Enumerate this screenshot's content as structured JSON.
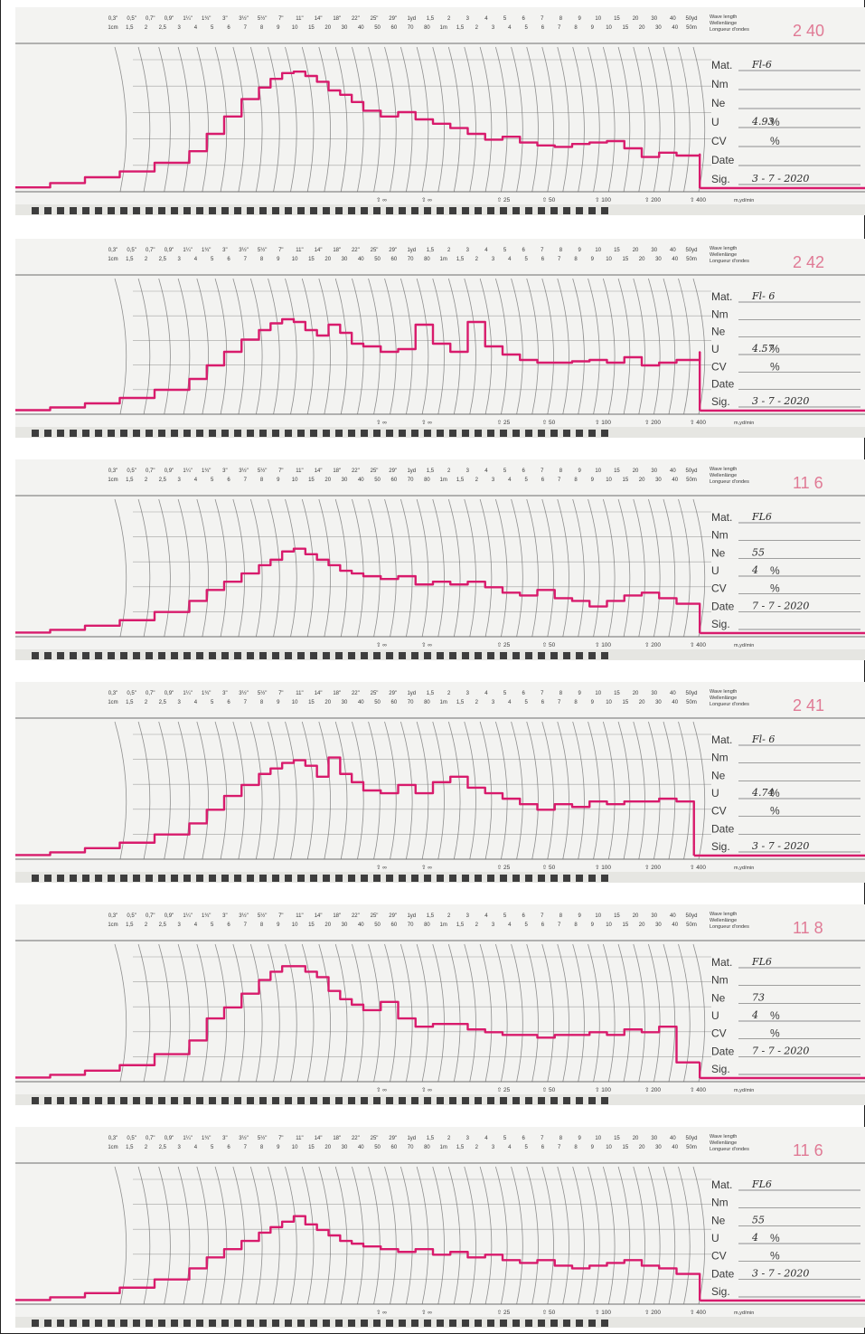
{
  "colors": {
    "paper": "#f3f3f1",
    "paper_shadow": "#e6e6e2",
    "grid": "#6d6d6d",
    "trace": "#d81b6c",
    "stamp_number": "#e07a95",
    "ink": "#3a3a3a",
    "handwriting": "#2a2a2a",
    "bar": "#3d3d3d"
  },
  "scale": {
    "top_row": [
      "0,3\"",
      "0,5\"",
      "0,7\"",
      "0,9\"",
      "1¼\"",
      "1¾\"",
      "3\"",
      "3½\"",
      "5½\"",
      "7\"",
      "11\"",
      "14\"",
      "18\"",
      "22\"",
      "25\"",
      "29\"",
      "1yd",
      "1,5",
      "2",
      "3",
      "4",
      "5",
      "6",
      "7",
      "8",
      "9",
      "10",
      "15",
      "20",
      "30",
      "40",
      "50yd"
    ],
    "bottom_row": [
      "1cm",
      "1,5",
      "2",
      "2,5",
      "3",
      "4",
      "5",
      "6",
      "7",
      "8",
      "9",
      "10",
      "15",
      "20",
      "30",
      "40",
      "50",
      "60",
      "70",
      "80",
      "1m",
      "1,5",
      "2",
      "3",
      "4",
      "5",
      "6",
      "7",
      "8",
      "9",
      "10",
      "15",
      "20",
      "30",
      "40",
      "50m"
    ],
    "header": [
      "Wave length",
      "Wellenlänge",
      "Longueur d'ondes"
    ],
    "speed_marks": [
      "∞",
      "∞",
      "25",
      "50",
      "100",
      "200",
      "400"
    ],
    "speed_unit": "m,yd/min"
  },
  "chart_data": [
    {
      "type": "line",
      "stamp": "2   40",
      "fields": [
        {
          "label": "Mat.",
          "value": "Fl-6"
        },
        {
          "label": "Nm",
          "value": ""
        },
        {
          "label": "Ne",
          "value": ""
        },
        {
          "label": "U",
          "value": "4.93",
          "unit": "%"
        },
        {
          "label": "CV",
          "value": "",
          "unit": "%"
        },
        {
          "label": "Date",
          "value": ""
        },
        {
          "label": "Sig.",
          "value": "3 - 7 - 2020"
        }
      ],
      "x": [
        0,
        30,
        60,
        90,
        120,
        150,
        165,
        180,
        195,
        210,
        220,
        230,
        240,
        250,
        260,
        270,
        280,
        290,
        300,
        315,
        330,
        345,
        360,
        375,
        390,
        405,
        420,
        435,
        450,
        465,
        480,
        495,
        510,
        525,
        540,
        555,
        570,
        590
      ],
      "y": [
        3,
        6,
        10,
        14,
        20,
        28,
        40,
        52,
        64,
        72,
        78,
        82,
        83,
        80,
        76,
        70,
        67,
        62,
        56,
        52,
        55,
        50,
        47,
        44,
        40,
        36,
        38,
        34,
        32,
        31,
        33,
        34,
        35,
        30,
        24,
        27,
        25,
        26
      ]
    },
    {
      "type": "line",
      "stamp": "2   42",
      "fields": [
        {
          "label": "Mat.",
          "value": "Fl- 6"
        },
        {
          "label": "Nm",
          "value": ""
        },
        {
          "label": "Ne",
          "value": ""
        },
        {
          "label": "U",
          "value": "4.57",
          "unit": "%"
        },
        {
          "label": "CV",
          "value": "",
          "unit": "%"
        },
        {
          "label": "Date",
          "value": ""
        },
        {
          "label": "Sig.",
          "value": "3 - 7 - 2020"
        }
      ],
      "x": [
        0,
        30,
        60,
        90,
        120,
        150,
        165,
        180,
        195,
        210,
        220,
        230,
        240,
        250,
        260,
        270,
        280,
        290,
        300,
        315,
        330,
        345,
        360,
        375,
        390,
        405,
        420,
        435,
        450,
        465,
        480,
        495,
        510,
        525,
        540,
        555,
        570,
        590
      ],
      "y": [
        3,
        5,
        8,
        12,
        18,
        26,
        36,
        46,
        55,
        62,
        67,
        70,
        68,
        62,
        58,
        66,
        60,
        52,
        50,
        46,
        48,
        66,
        52,
        46,
        68,
        50,
        44,
        40,
        38,
        38,
        39,
        40,
        38,
        42,
        36,
        38,
        40,
        46
      ]
    },
    {
      "type": "line",
      "stamp": "11   6",
      "fields": [
        {
          "label": "Mat.",
          "value": "FL6"
        },
        {
          "label": "Nm",
          "value": ""
        },
        {
          "label": "Ne",
          "value": "55"
        },
        {
          "label": "U",
          "value": "4",
          "unit": "%"
        },
        {
          "label": "CV",
          "value": "",
          "unit": "%"
        },
        {
          "label": "Date",
          "value": "7 - 7 - 2020"
        },
        {
          "label": "Sig.",
          "value": ""
        }
      ],
      "x": [
        0,
        30,
        60,
        90,
        120,
        150,
        165,
        180,
        195,
        210,
        220,
        230,
        240,
        250,
        260,
        270,
        280,
        290,
        300,
        315,
        330,
        345,
        360,
        375,
        390,
        405,
        420,
        435,
        450,
        465,
        480,
        495,
        510,
        525,
        540,
        555,
        570,
        590
      ],
      "y": [
        3,
        5,
        8,
        12,
        18,
        26,
        34,
        40,
        46,
        52,
        56,
        62,
        64,
        60,
        56,
        52,
        48,
        46,
        44,
        42,
        44,
        38,
        40,
        38,
        40,
        36,
        32,
        30,
        34,
        28,
        26,
        22,
        26,
        30,
        32,
        28,
        24,
        16
      ]
    },
    {
      "type": "line",
      "stamp": "2   41",
      "fields": [
        {
          "label": "Mat.",
          "value": "Fl- 6"
        },
        {
          "label": "Nm",
          "value": ""
        },
        {
          "label": "Ne",
          "value": ""
        },
        {
          "label": "U",
          "value": "4.74",
          "unit": "%"
        },
        {
          "label": "CV",
          "value": "",
          "unit": "%"
        },
        {
          "label": "Date",
          "value": ""
        },
        {
          "label": "Sig.",
          "value": "3 - 7 - 2020"
        }
      ],
      "x": [
        0,
        30,
        60,
        90,
        120,
        150,
        165,
        180,
        195,
        210,
        220,
        230,
        240,
        250,
        260,
        270,
        280,
        290,
        300,
        315,
        330,
        345,
        360,
        375,
        390,
        405,
        420,
        435,
        450,
        465,
        480,
        495,
        510,
        525,
        540,
        555,
        570,
        585
      ],
      "y": [
        3,
        5,
        8,
        12,
        18,
        26,
        36,
        46,
        54,
        62,
        66,
        70,
        72,
        68,
        60,
        74,
        62,
        56,
        50,
        48,
        54,
        48,
        56,
        60,
        52,
        48,
        44,
        40,
        36,
        40,
        38,
        42,
        40,
        42,
        42,
        44,
        42,
        10
      ]
    },
    {
      "type": "line",
      "stamp": "11   8",
      "fields": [
        {
          "label": "Mat.",
          "value": "FL6"
        },
        {
          "label": "Nm",
          "value": ""
        },
        {
          "label": "Ne",
          "value": "73"
        },
        {
          "label": "U",
          "value": "4",
          "unit": "%"
        },
        {
          "label": "CV",
          "value": "",
          "unit": "%"
        },
        {
          "label": "Date",
          "value": "7 - 7 - 2020"
        },
        {
          "label": "Sig.",
          "value": ""
        }
      ],
      "x": [
        0,
        30,
        60,
        90,
        120,
        150,
        165,
        180,
        195,
        210,
        220,
        230,
        240,
        250,
        260,
        270,
        280,
        290,
        300,
        315,
        330,
        345,
        360,
        375,
        390,
        405,
        420,
        435,
        450,
        465,
        480,
        495,
        510,
        525,
        540,
        555,
        570,
        590
      ],
      "y": [
        3,
        5,
        8,
        12,
        20,
        30,
        46,
        54,
        64,
        74,
        80,
        84,
        84,
        80,
        76,
        66,
        60,
        56,
        52,
        58,
        46,
        40,
        42,
        42,
        38,
        36,
        34,
        34,
        32,
        34,
        34,
        36,
        34,
        38,
        36,
        40,
        14,
        14
      ]
    },
    {
      "type": "line",
      "stamp": "11   6",
      "fields": [
        {
          "label": "Mat.",
          "value": "FL6"
        },
        {
          "label": "Nm",
          "value": ""
        },
        {
          "label": "Ne",
          "value": "55"
        },
        {
          "label": "U",
          "value": "4",
          "unit": "%"
        },
        {
          "label": "CV",
          "value": "",
          "unit": "%"
        },
        {
          "label": "Date",
          "value": "3 - 7 - 2020"
        },
        {
          "label": "Sig.",
          "value": ""
        }
      ],
      "x": [
        0,
        30,
        60,
        90,
        120,
        150,
        165,
        180,
        195,
        210,
        220,
        230,
        240,
        250,
        260,
        270,
        280,
        290,
        300,
        315,
        330,
        345,
        360,
        375,
        390,
        405,
        420,
        435,
        450,
        465,
        480,
        495,
        510,
        525,
        540,
        555,
        570,
        590
      ],
      "y": [
        3,
        5,
        8,
        12,
        18,
        26,
        34,
        40,
        46,
        52,
        56,
        60,
        64,
        58,
        54,
        50,
        46,
        44,
        42,
        40,
        38,
        40,
        36,
        38,
        34,
        36,
        32,
        30,
        32,
        28,
        26,
        28,
        30,
        32,
        28,
        26,
        22,
        14
      ]
    }
  ]
}
